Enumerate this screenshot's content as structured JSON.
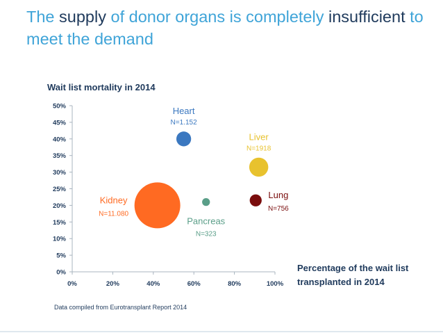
{
  "slide": {
    "title_parts": [
      "The ",
      "supply",
      " of donor organs is completely ",
      "insufficient",
      " to meet the demand"
    ],
    "source_note": "Data compiled from Eurotransplant Report 2014"
  },
  "chart_data": {
    "type": "scatter",
    "title": "Wait list mortality in 2014",
    "xlabel": "Percentage of the wait list transplanted in 2014",
    "ylabel": "Wait list mortality in 2014",
    "xlim": [
      0,
      100
    ],
    "ylim": [
      0,
      50
    ],
    "x_ticks": [
      "0%",
      "20%",
      "40%",
      "60%",
      "80%",
      "100%"
    ],
    "y_ticks": [
      "0%",
      "5%",
      "10%",
      "15%",
      "20%",
      "25%",
      "30%",
      "35%",
      "40%",
      "45%",
      "50%"
    ],
    "points": [
      {
        "name": "Kidney",
        "n_label": "N=11.080",
        "n": 11080,
        "x": 42,
        "y": 20,
        "color": "#ff6a22",
        "label_pos": "left"
      },
      {
        "name": "Heart",
        "n_label": "N=1.152",
        "n": 1152,
        "x": 55,
        "y": 40,
        "color": "#3b78c0",
        "label_pos": "top"
      },
      {
        "name": "Pancreas",
        "n_label": "N=323",
        "n": 323,
        "x": 66,
        "y": 21,
        "color": "#5a9e88",
        "label_pos": "below"
      },
      {
        "name": "Liver",
        "n_label": "N=1918",
        "n": 1918,
        "x": 92,
        "y": 31.5,
        "color": "#e8c22e",
        "label_pos": "top"
      },
      {
        "name": "Lung",
        "n_label": "N=756",
        "n": 756,
        "x": 90.5,
        "y": 21.5,
        "color": "#7a0d0d",
        "label_pos": "right"
      }
    ],
    "xlabel_lines": [
      "Percentage of the wait list",
      "transplanted in 2014"
    ]
  }
}
